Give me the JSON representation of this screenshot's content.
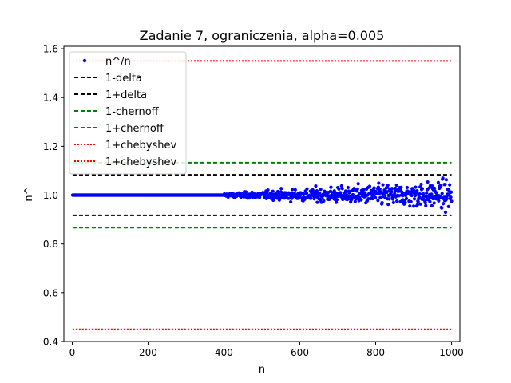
{
  "chart_data": {
    "type": "scatter",
    "title": "Zadanie 7, ograniczenia, alpha=0.005",
    "xlabel": "n",
    "ylabel": "n^",
    "xlim": [
      -22,
      1022
    ],
    "ylim": [
      0.4,
      1.61
    ],
    "x_ticks": [
      0,
      200,
      400,
      600,
      800,
      1000
    ],
    "x_tick_labels": [
      "0",
      "200",
      "400",
      "600",
      "800",
      "1000"
    ],
    "y_ticks": [
      0.4,
      0.6,
      0.8,
      1.0,
      1.2,
      1.4,
      1.6
    ],
    "y_tick_labels": [
      "0.4",
      "0.6",
      "0.8",
      "1.0",
      "1.2",
      "1.4",
      "1.6"
    ],
    "grid": false,
    "legend_position": "top-left",
    "scatter_series": {
      "name": "n^/n",
      "color": "#0000ff",
      "exact_until": 400,
      "x_range": [
        1,
        1000
      ],
      "exact_value": 1.0,
      "note_spread_after_400": [
        0.92,
        1.11
      ]
    },
    "lines": [
      {
        "name": "1-delta",
        "y": 0.917,
        "color": "#000000",
        "style": "dashed"
      },
      {
        "name": "1+delta",
        "y": 1.083,
        "color": "#000000",
        "style": "dashed"
      },
      {
        "name": "1-chernoff",
        "y": 0.867,
        "color": "#008000",
        "style": "dashed"
      },
      {
        "name": "1+chernoff",
        "y": 1.133,
        "color": "#008000",
        "style": "dashed"
      },
      {
        "name": "1+chebyshev",
        "y": 1.55,
        "color": "#ff0000",
        "style": "dotted"
      },
      {
        "name": "1+chebyshev",
        "y": 0.45,
        "color": "#ff0000",
        "style": "dotted"
      }
    ],
    "legend": [
      {
        "label": "n^/n",
        "color": "#0000ff",
        "style": "dot"
      },
      {
        "label": "1-delta",
        "color": "#000000",
        "style": "dashed"
      },
      {
        "label": "1+delta",
        "color": "#000000",
        "style": "dashed"
      },
      {
        "label": "1-chernoff",
        "color": "#008000",
        "style": "dashed"
      },
      {
        "label": "1+chernoff",
        "color": "#008000",
        "style": "dashed"
      },
      {
        "label": "1+chebyshev",
        "color": "#ff0000",
        "style": "dotted"
      },
      {
        "label": "1+chebyshev",
        "color": "#ff0000",
        "style": "dotted"
      }
    ]
  }
}
